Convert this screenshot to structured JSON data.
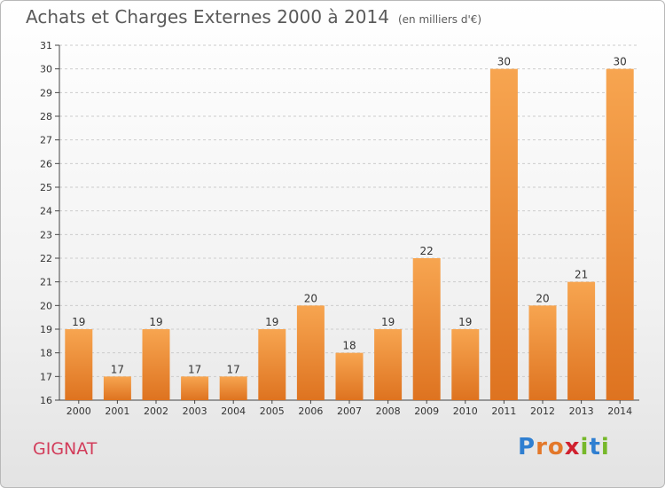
{
  "title": "Achats et Charges Externes 2000 à 2014",
  "unit": "(en milliers d'€)",
  "commune": "GIGNAT",
  "brand": {
    "text": "Proxiti",
    "letters": [
      {
        "ch": "P",
        "color": "#2f7fd1"
      },
      {
        "ch": "r",
        "color": "#e3782a"
      },
      {
        "ch": "o",
        "color": "#e3782a"
      },
      {
        "ch": "x",
        "color": "#d0202e"
      },
      {
        "ch": "i",
        "color": "#76b82a"
      },
      {
        "ch": "t",
        "color": "#2f7fd1"
      },
      {
        "ch": "i",
        "color": "#76b82a"
      }
    ]
  },
  "colors": {
    "bar_top": "#f7a550",
    "bar_bottom": "#de7320",
    "title": "#5a5a5a",
    "commune": "#d23c5a",
    "grid": "#cccccc"
  },
  "chart_data": {
    "type": "bar",
    "categories": [
      "2000",
      "2001",
      "2002",
      "2003",
      "2004",
      "2005",
      "2006",
      "2007",
      "2008",
      "2009",
      "2010",
      "2011",
      "2012",
      "2013",
      "2014"
    ],
    "values": [
      19,
      17,
      19,
      17,
      17,
      19,
      20,
      18,
      19,
      22,
      19,
      30,
      20,
      21,
      30
    ],
    "ylim": [
      16,
      31
    ],
    "yticks": [
      16,
      17,
      18,
      19,
      20,
      21,
      22,
      23,
      24,
      25,
      26,
      27,
      28,
      29,
      30,
      31
    ],
    "grid": "horizontal dashed",
    "data_labels": true,
    "legend": "none"
  }
}
